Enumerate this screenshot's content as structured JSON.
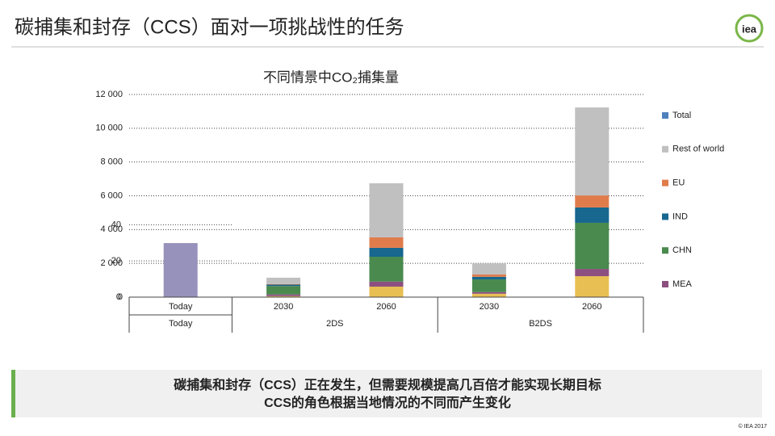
{
  "slide_title": "碳捕集和封存（CCS）面对一项挑战性的任务",
  "logo": "iea",
  "chart_data": {
    "type": "stacked_bar",
    "title": "不同情景中CO₂捕集量",
    "categories": [
      "Today",
      "2030",
      "2060",
      "2030",
      "2060"
    ],
    "groups": [
      {
        "name": "Today",
        "size": 1
      },
      {
        "name": "2DS",
        "size": 2
      },
      {
        "name": "B2DS",
        "size": 2
      }
    ],
    "series": [
      {
        "name": "Total",
        "color": "#9792bb",
        "legend_color": "#4f81bd",
        "values": [
          3200,
          null,
          null,
          null,
          null
        ]
      },
      {
        "name": "Rest of world",
        "color": "#c0c0c0",
        "values": [
          null,
          380,
          3200,
          660,
          5210
        ]
      },
      {
        "name": "EU",
        "color": "#e07c4c",
        "values": [
          null,
          30,
          620,
          140,
          710
        ]
      },
      {
        "name": "IND",
        "color": "#17678f",
        "values": [
          null,
          80,
          530,
          150,
          910
        ]
      },
      {
        "name": "CHN",
        "color": "#4a8a4e",
        "values": [
          null,
          500,
          1470,
          750,
          2730
        ]
      },
      {
        "name": "MEA",
        "color": "#8c4f80",
        "values": [
          null,
          100,
          300,
          100,
          430
        ]
      },
      {
        "color": "#e8bf52",
        "values": [
          null,
          60,
          620,
          200,
          1240
        ]
      }
    ],
    "ylim": [
      0,
      12000
    ],
    "yticks": [
      {
        "value": 0,
        "label": "0"
      },
      {
        "value": 2000,
        "label": "2 000"
      },
      {
        "value": 4000,
        "label": "4 000"
      },
      {
        "value": 6000,
        "label": "6 000"
      },
      {
        "value": 8000,
        "label": "8 000"
      },
      {
        "value": 10000,
        "label": "10 000"
      },
      {
        "value": 12000,
        "label": "12 000"
      }
    ],
    "y2lim": [
      0,
      112
    ],
    "y2ticks": [
      0,
      20,
      40
    ],
    "grid": true,
    "legend": "right"
  },
  "callout": [
    "碳捕集和封存（CCS）正在发生，但需要规模提高几百倍才能实现长期目标",
    "CCS的角色根据当地情况的不同而产生变化"
  ],
  "footer": "© IEA 2017"
}
